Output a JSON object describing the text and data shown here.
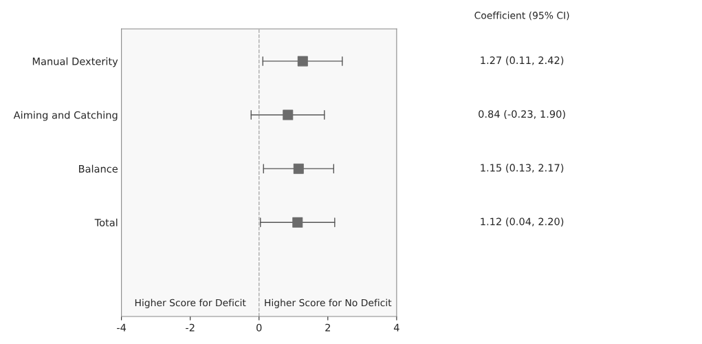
{
  "chart_data": {
    "type": "scatter",
    "orientation": "horizontal",
    "marker": "square",
    "categories": [
      "Manual Dexterity",
      "Aiming and Catching",
      "Balance",
      "Total"
    ],
    "values": [
      1.27,
      0.84,
      1.15,
      1.12
    ],
    "errors": [
      [
        0.11,
        2.42
      ],
      [
        -0.23,
        1.9
      ],
      [
        0.13,
        2.17
      ],
      [
        0.04,
        2.2
      ]
    ],
    "color": "#6b6b6b",
    "value_labels": [
      "1.27 (0.11, 2.42)",
      "0.84 (-0.23, 1.90)",
      "1.15 (0.13, 2.17)",
      "1.12 (0.04, 2.20)"
    ],
    "xlim": [
      -4,
      4
    ],
    "xticks": [
      -4,
      -2,
      0,
      2,
      4
    ],
    "ref_lines": [
      {
        "axis": "x",
        "value": 0,
        "color": "#aaaaaa",
        "line_style": "dashed"
      }
    ],
    "annotations": [
      "Coefficient (95% CI)",
      "Higher Score for Deficit",
      "Higher Score for No Deficit"
    ],
    "grid": false,
    "legend": false
  }
}
